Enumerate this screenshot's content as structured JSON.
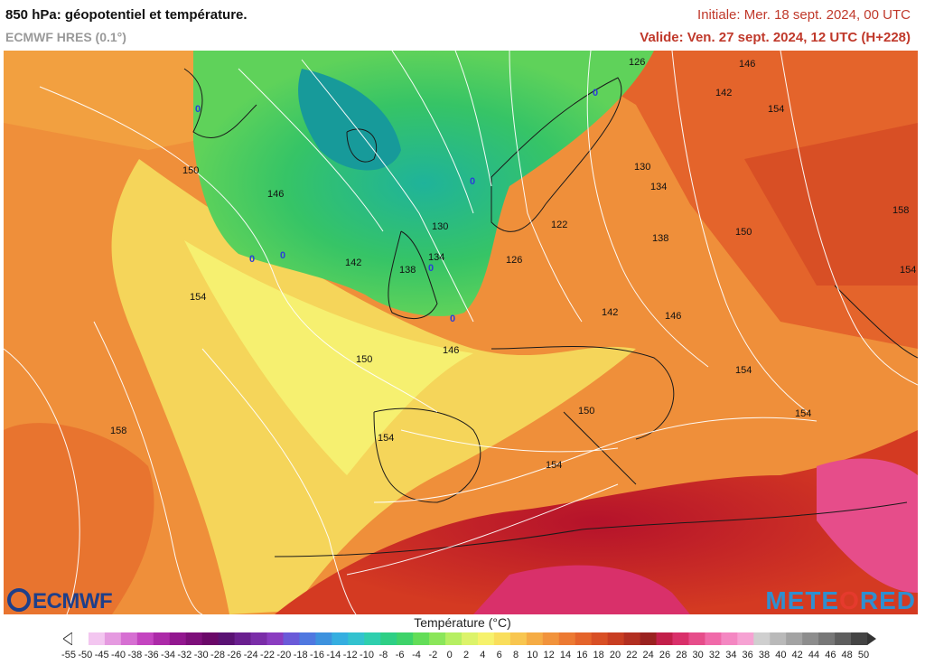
{
  "header": {
    "title": "850 hPa: géopotentiel et température.",
    "model": "ECMWF HRES (0.1°)",
    "init": "Initiale: Mer. 18 sept. 2024, 00 UTC",
    "valid": "Valide: Ven. 27 sept. 2024, 12 UTC (H+228)"
  },
  "contour_labels": [
    "126",
    "146",
    "142",
    "154",
    "150",
    "146",
    "130",
    "134",
    "158",
    "150",
    "138",
    "122",
    "130",
    "134",
    "138",
    "142",
    "126",
    "154",
    "142",
    "146",
    "154",
    "146",
    "150",
    "158",
    "154",
    "150",
    "154",
    "154",
    "154"
  ],
  "freezing_labels": [
    "0",
    "0",
    "0",
    "0",
    "0",
    "0",
    "0"
  ],
  "logos": {
    "left": "ECMWF",
    "right_a": "METE",
    "right_b": "O",
    "right_c": "RED"
  },
  "legend": {
    "title": "Température (°C)",
    "ticks": [
      "-55",
      "-50",
      "-45",
      "-40",
      "-38",
      "-36",
      "-34",
      "-32",
      "-30",
      "-28",
      "-26",
      "-24",
      "-22",
      "-20",
      "-18",
      "-16",
      "-14",
      "-12",
      "-10",
      "-8",
      "-6",
      "-4",
      "-2",
      "0",
      "2",
      "4",
      "6",
      "8",
      "10",
      "12",
      "14",
      "16",
      "18",
      "20",
      "22",
      "24",
      "26",
      "28",
      "30",
      "32",
      "34",
      "36",
      "38",
      "40",
      "42",
      "44",
      "46",
      "48",
      "50"
    ],
    "colors": [
      "#ffffff",
      "#f3c6f0",
      "#e59ae0",
      "#d66fd2",
      "#c445c0",
      "#ac2aa8",
      "#92178f",
      "#7d0f7a",
      "#6a0868",
      "#5a1273",
      "#6a1f8f",
      "#7a2da8",
      "#8a3cc0",
      "#6a5ad8",
      "#4f78e0",
      "#3d92de",
      "#35aee0",
      "#33c2cf",
      "#2fcfae",
      "#2ecf85",
      "#3ed36a",
      "#63dd58",
      "#8be65a",
      "#b6ef62",
      "#dcf36a",
      "#f6f26c",
      "#f9de5c",
      "#f8c650",
      "#f5ac45",
      "#f1933c",
      "#ec7a33",
      "#e4642b",
      "#d84f25",
      "#c83e22",
      "#b22f21",
      "#9a2220",
      "#c21f4a",
      "#d9306a",
      "#e64d8a",
      "#f06aa9",
      "#f487c2",
      "#f6a2d3",
      "#cfcfcf",
      "#b9b9b9",
      "#a3a3a3",
      "#8d8d8d",
      "#777777",
      "#5e5e5e",
      "#444444"
    ]
  },
  "colors": {
    "header_red": "#c0392b",
    "contour": "#ffffff",
    "freezing": "#2a3fd8"
  }
}
